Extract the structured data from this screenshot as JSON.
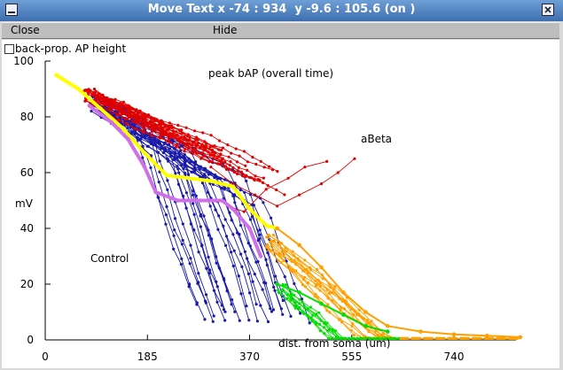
{
  "window": {
    "title": "Move Text x -74 : 934  y -9.6 : 105.6 (on )"
  },
  "menu": {
    "close_label": "Close",
    "hide_label": "Hide"
  },
  "checkbox": {
    "label": "back-prop. AP height",
    "checked": false
  },
  "chart_data": {
    "type": "line",
    "title": "peak bAP (overall time)",
    "xlabel": "dist. from soma (um)",
    "ylabel": "mV",
    "xlim": [
      0,
      900
    ],
    "ylim": [
      0,
      100
    ],
    "xticks": [
      0,
      185,
      370,
      555,
      740
    ],
    "yticks": [
      0,
      20,
      40,
      60,
      80,
      100
    ],
    "annotations": [
      "aBeta",
      "Control"
    ],
    "colors": {
      "abeta": "#e00000",
      "control": "#1a1aa8",
      "yellow_avg": "#ffff00",
      "violet_avg": "#d070e8",
      "orange": "#ffa000",
      "green": "#00e000"
    },
    "series": [
      {
        "color": "yellow",
        "x": [
          20,
          60,
          100,
          140,
          180,
          220,
          260,
          300,
          340,
          370,
          400,
          420
        ],
        "y": [
          95,
          90,
          83,
          76,
          67,
          59,
          58,
          57,
          55,
          47,
          41,
          40
        ]
      },
      {
        "color": "violet",
        "x": [
          80,
          120,
          150,
          180,
          200,
          240,
          280,
          320,
          340,
          370,
          390
        ],
        "y": [
          84,
          78,
          72,
          62,
          53,
          50,
          50,
          50,
          47,
          40,
          30
        ]
      },
      {
        "color": "orange",
        "x": [
          420,
          460,
          500,
          540,
          580,
          620,
          680,
          740,
          800,
          860
        ],
        "y": [
          40,
          34,
          26,
          17,
          10,
          5,
          3,
          2,
          1.5,
          1
        ]
      },
      {
        "color": "green",
        "x": [
          420,
          460,
          500,
          540,
          580,
          620
        ],
        "y": [
          20,
          17,
          13,
          9,
          5,
          3
        ]
      }
    ]
  }
}
